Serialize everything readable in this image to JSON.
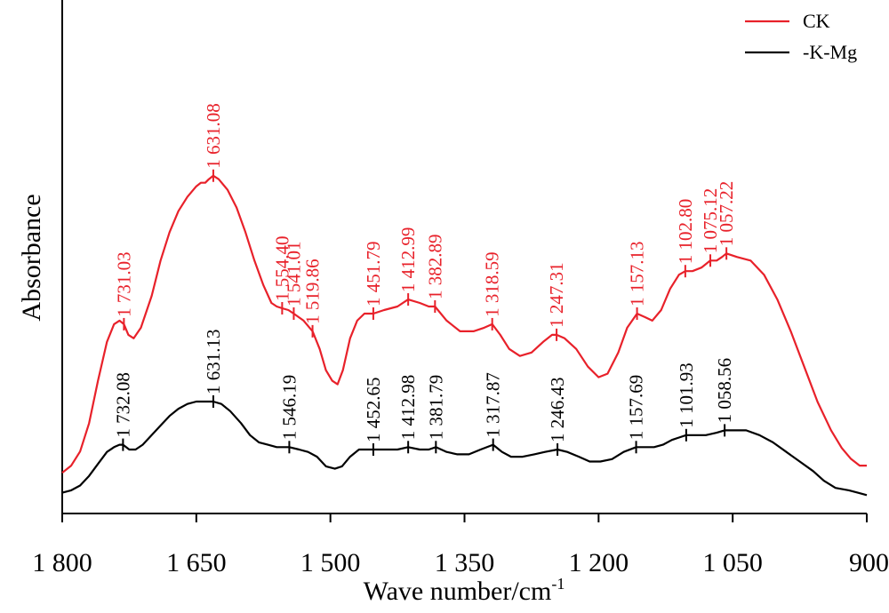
{
  "chart_data": {
    "type": "line",
    "xlabel": "Wave number/cm",
    "xlabel_superscript": "-1",
    "ylabel": "Absorbance",
    "xlim": [
      1800,
      900
    ],
    "x_reversed": true,
    "y_ticks_shown": false,
    "grid": false,
    "legend_position": "top-right",
    "x_ticks": [
      {
        "value": 1800,
        "label": "1 800"
      },
      {
        "value": 1650,
        "label": "1 650"
      },
      {
        "value": 1500,
        "label": "1 500"
      },
      {
        "value": 1350,
        "label": "1 350"
      },
      {
        "value": 1200,
        "label": "1 200"
      },
      {
        "value": 1050,
        "label": "1 050"
      },
      {
        "value": 900,
        "label": "900"
      }
    ],
    "ylim": [
      0,
      1
    ],
    "series": [
      {
        "name": "CK",
        "color": "#e8212a",
        "points": [
          [
            1800,
            0.04
          ],
          [
            1790,
            0.06
          ],
          [
            1780,
            0.1
          ],
          [
            1770,
            0.18
          ],
          [
            1760,
            0.3
          ],
          [
            1750,
            0.41
          ],
          [
            1742,
            0.46
          ],
          [
            1736,
            0.47
          ],
          [
            1731,
            0.46
          ],
          [
            1726,
            0.43
          ],
          [
            1720,
            0.42
          ],
          [
            1712,
            0.45
          ],
          [
            1700,
            0.54
          ],
          [
            1690,
            0.64
          ],
          [
            1680,
            0.72
          ],
          [
            1670,
            0.78
          ],
          [
            1660,
            0.82
          ],
          [
            1650,
            0.85
          ],
          [
            1645,
            0.86
          ],
          [
            1640,
            0.86
          ],
          [
            1636,
            0.87
          ],
          [
            1631,
            0.88
          ],
          [
            1625,
            0.87
          ],
          [
            1615,
            0.84
          ],
          [
            1605,
            0.79
          ],
          [
            1595,
            0.72
          ],
          [
            1585,
            0.64
          ],
          [
            1575,
            0.57
          ],
          [
            1566,
            0.52
          ],
          [
            1560,
            0.51
          ],
          [
            1554,
            0.505
          ],
          [
            1547,
            0.5
          ],
          [
            1541,
            0.49
          ],
          [
            1530,
            0.47
          ],
          [
            1520,
            0.44
          ],
          [
            1512,
            0.39
          ],
          [
            1505,
            0.33
          ],
          [
            1498,
            0.3
          ],
          [
            1492,
            0.29
          ],
          [
            1486,
            0.33
          ],
          [
            1478,
            0.42
          ],
          [
            1470,
            0.47
          ],
          [
            1462,
            0.49
          ],
          [
            1452,
            0.49
          ],
          [
            1440,
            0.5
          ],
          [
            1425,
            0.51
          ],
          [
            1413,
            0.53
          ],
          [
            1400,
            0.52
          ],
          [
            1390,
            0.51
          ],
          [
            1383,
            0.51
          ],
          [
            1370,
            0.47
          ],
          [
            1355,
            0.44
          ],
          [
            1340,
            0.44
          ],
          [
            1328,
            0.45
          ],
          [
            1319,
            0.46
          ],
          [
            1310,
            0.43
          ],
          [
            1300,
            0.39
          ],
          [
            1288,
            0.37
          ],
          [
            1275,
            0.38
          ],
          [
            1262,
            0.41
          ],
          [
            1252,
            0.43
          ],
          [
            1247,
            0.43
          ],
          [
            1238,
            0.42
          ],
          [
            1225,
            0.39
          ],
          [
            1212,
            0.34
          ],
          [
            1200,
            0.31
          ],
          [
            1190,
            0.32
          ],
          [
            1178,
            0.38
          ],
          [
            1168,
            0.45
          ],
          [
            1157,
            0.49
          ],
          [
            1148,
            0.48
          ],
          [
            1140,
            0.47
          ],
          [
            1130,
            0.5
          ],
          [
            1120,
            0.56
          ],
          [
            1110,
            0.6
          ],
          [
            1103,
            0.61
          ],
          [
            1095,
            0.61
          ],
          [
            1085,
            0.62
          ],
          [
            1075,
            0.64
          ],
          [
            1068,
            0.64
          ],
          [
            1062,
            0.65
          ],
          [
            1057,
            0.66
          ],
          [
            1045,
            0.65
          ],
          [
            1030,
            0.64
          ],
          [
            1015,
            0.6
          ],
          [
            1000,
            0.53
          ],
          [
            985,
            0.44
          ],
          [
            970,
            0.34
          ],
          [
            955,
            0.24
          ],
          [
            940,
            0.16
          ],
          [
            928,
            0.11
          ],
          [
            918,
            0.08
          ],
          [
            908,
            0.06
          ],
          [
            900,
            0.06
          ]
        ],
        "peaks": [
          {
            "x": 1731,
            "label": "1 731.03"
          },
          {
            "x": 1631,
            "label": "1 631.08"
          },
          {
            "x": 1554,
            "label": "1 554.40"
          },
          {
            "x": 1541,
            "label": "1 541.01"
          },
          {
            "x": 1520,
            "label": "1 519.86"
          },
          {
            "x": 1452,
            "label": "1 451.79"
          },
          {
            "x": 1413,
            "label": "1 412.99"
          },
          {
            "x": 1383,
            "label": "1 382.89"
          },
          {
            "x": 1319,
            "label": "1 318.59"
          },
          {
            "x": 1247,
            "label": "1 247.31"
          },
          {
            "x": 1157,
            "label": "1 157.13"
          },
          {
            "x": 1103,
            "label": "1 102.80"
          },
          {
            "x": 1075,
            "label": "1 075.12"
          },
          {
            "x": 1057,
            "label": "1 057.22"
          }
        ]
      },
      {
        "name": "-K-Mg",
        "color": "#000000",
        "points": [
          [
            1800,
            0.02
          ],
          [
            1790,
            0.03
          ],
          [
            1780,
            0.05
          ],
          [
            1770,
            0.09
          ],
          [
            1760,
            0.14
          ],
          [
            1750,
            0.19
          ],
          [
            1742,
            0.21
          ],
          [
            1736,
            0.22
          ],
          [
            1732,
            0.22
          ],
          [
            1725,
            0.2
          ],
          [
            1718,
            0.2
          ],
          [
            1710,
            0.22
          ],
          [
            1700,
            0.26
          ],
          [
            1690,
            0.3
          ],
          [
            1680,
            0.34
          ],
          [
            1670,
            0.37
          ],
          [
            1660,
            0.39
          ],
          [
            1650,
            0.4
          ],
          [
            1640,
            0.4
          ],
          [
            1631,
            0.4
          ],
          [
            1622,
            0.39
          ],
          [
            1612,
            0.36
          ],
          [
            1600,
            0.31
          ],
          [
            1590,
            0.26
          ],
          [
            1580,
            0.23
          ],
          [
            1570,
            0.22
          ],
          [
            1560,
            0.21
          ],
          [
            1550,
            0.21
          ],
          [
            1546,
            0.21
          ],
          [
            1535,
            0.2
          ],
          [
            1525,
            0.19
          ],
          [
            1515,
            0.17
          ],
          [
            1505,
            0.13
          ],
          [
            1495,
            0.12
          ],
          [
            1487,
            0.13
          ],
          [
            1478,
            0.17
          ],
          [
            1468,
            0.2
          ],
          [
            1459,
            0.2
          ],
          [
            1452,
            0.2
          ],
          [
            1440,
            0.2
          ],
          [
            1425,
            0.2
          ],
          [
            1413,
            0.21
          ],
          [
            1400,
            0.2
          ],
          [
            1390,
            0.2
          ],
          [
            1382,
            0.21
          ],
          [
            1370,
            0.19
          ],
          [
            1358,
            0.18
          ],
          [
            1345,
            0.18
          ],
          [
            1332,
            0.2
          ],
          [
            1318,
            0.22
          ],
          [
            1308,
            0.19
          ],
          [
            1298,
            0.17
          ],
          [
            1285,
            0.17
          ],
          [
            1272,
            0.18
          ],
          [
            1260,
            0.19
          ],
          [
            1246,
            0.2
          ],
          [
            1235,
            0.19
          ],
          [
            1222,
            0.17
          ],
          [
            1210,
            0.15
          ],
          [
            1198,
            0.15
          ],
          [
            1185,
            0.16
          ],
          [
            1172,
            0.19
          ],
          [
            1158,
            0.21
          ],
          [
            1148,
            0.21
          ],
          [
            1138,
            0.21
          ],
          [
            1128,
            0.22
          ],
          [
            1118,
            0.24
          ],
          [
            1110,
            0.25
          ],
          [
            1102,
            0.26
          ],
          [
            1090,
            0.26
          ],
          [
            1080,
            0.26
          ],
          [
            1068,
            0.27
          ],
          [
            1059,
            0.28
          ],
          [
            1045,
            0.28
          ],
          [
            1035,
            0.28
          ],
          [
            1020,
            0.26
          ],
          [
            1005,
            0.23
          ],
          [
            990,
            0.19
          ],
          [
            975,
            0.15
          ],
          [
            960,
            0.11
          ],
          [
            948,
            0.07
          ],
          [
            935,
            0.04
          ],
          [
            920,
            0.03
          ],
          [
            910,
            0.02
          ],
          [
            900,
            0.01
          ]
        ],
        "peaks": [
          {
            "x": 1732,
            "label": "1 732.08"
          },
          {
            "x": 1631,
            "label": "1 631.13"
          },
          {
            "x": 1546,
            "label": "1 546.19"
          },
          {
            "x": 1452,
            "label": "1 452.65"
          },
          {
            "x": 1413,
            "label": "1 412.98"
          },
          {
            "x": 1382,
            "label": "1 381.79"
          },
          {
            "x": 1318,
            "label": "1 317.87"
          },
          {
            "x": 1246,
            "label": "1 246.43"
          },
          {
            "x": 1158,
            "label": "1 157.69"
          },
          {
            "x": 1102,
            "label": "1 101.93"
          },
          {
            "x": 1059,
            "label": "1 058.56"
          }
        ]
      }
    ]
  }
}
